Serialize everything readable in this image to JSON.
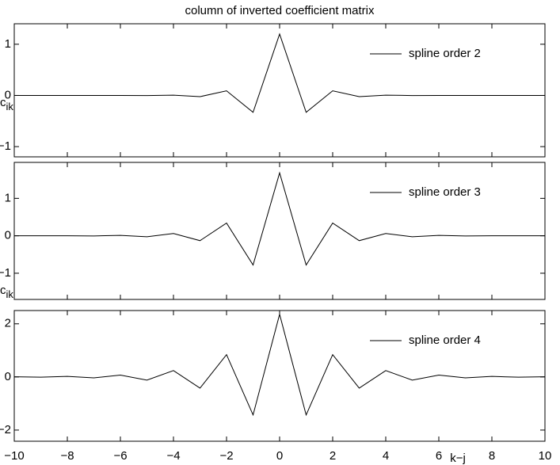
{
  "chart_data": [
    {
      "type": "line",
      "title": "column of inverted coefficient matrix",
      "ylabel": "c",
      "ylabel_subscript": "ik",
      "x": [
        -10,
        -9,
        -8,
        -7,
        -6,
        -5,
        -4,
        -3,
        -2,
        -1,
        0,
        1,
        2,
        3,
        4,
        5,
        6,
        7,
        8,
        9,
        10
      ],
      "series": [
        {
          "name": "spline order 2",
          "color": "#000000",
          "values": [
            0,
            0,
            0,
            0,
            0,
            -0.002,
            0.006,
            -0.024,
            0.09,
            -0.33,
            1.2,
            -0.33,
            0.09,
            -0.024,
            0.006,
            -0.002,
            0,
            0,
            0,
            0,
            0
          ]
        }
      ],
      "xlim": [
        -10,
        10
      ],
      "xticks": [
        -10,
        -8,
        -6,
        -4,
        -2,
        0,
        2,
        4,
        6,
        8,
        10
      ],
      "ylim": [
        -1.2,
        1.4
      ],
      "yticks": [
        {
          "value": -1,
          "label": "−1"
        },
        0,
        1
      ],
      "legend": "upper right"
    },
    {
      "type": "line",
      "ylabel": "c",
      "ylabel_subscript": "ik",
      "x": [
        -10,
        -9,
        -8,
        -7,
        -6,
        -5,
        -4,
        -3,
        -2,
        -1,
        0,
        1,
        2,
        3,
        4,
        5,
        6,
        7,
        8,
        9,
        10
      ],
      "series": [
        {
          "name": "spline order 3",
          "color": "#000000",
          "values": [
            0,
            0,
            0,
            -0.004,
            0.01,
            -0.025,
            0.06,
            -0.13,
            0.34,
            -0.78,
            1.68,
            -0.78,
            0.34,
            -0.13,
            0.06,
            -0.025,
            0.01,
            -0.004,
            0,
            0,
            0
          ]
        }
      ],
      "xlim": [
        -10,
        10
      ],
      "xticks": [
        -10,
        -8,
        -6,
        -4,
        -2,
        0,
        2,
        4,
        6,
        8,
        10
      ],
      "ylim": [
        -1.7,
        1.96
      ],
      "yticks": [
        {
          "value": -1,
          "label": "−1"
        },
        0,
        1
      ],
      "legend": "upper right"
    },
    {
      "type": "line",
      "xlabel": "k−j",
      "x": [
        -10,
        -9,
        -8,
        -7,
        -6,
        -5,
        -4,
        -3,
        -2,
        -1,
        0,
        1,
        2,
        3,
        4,
        5,
        6,
        7,
        8,
        9,
        10
      ],
      "series": [
        {
          "name": "spline order 4",
          "color": "#000000",
          "values": [
            0.005,
            -0.01,
            0.02,
            -0.035,
            0.07,
            -0.12,
            0.24,
            -0.42,
            0.84,
            -1.43,
            2.36,
            -1.43,
            0.84,
            -0.42,
            0.24,
            -0.12,
            0.07,
            -0.035,
            0.02,
            -0.01,
            0.005
          ]
        }
      ],
      "xlim": [
        -10,
        10
      ],
      "xticks": [
        {
          "value": -10,
          "label": "−10"
        },
        {
          "value": -8,
          "label": "−8"
        },
        {
          "value": -6,
          "label": "−6"
        },
        {
          "value": -4,
          "label": "−4"
        },
        {
          "value": -2,
          "label": "−2"
        },
        0,
        2,
        4,
        6,
        8,
        10
      ],
      "ylim": [
        -2.42,
        2.5
      ],
      "yticks": [
        {
          "value": -2,
          "label": "−2"
        },
        0,
        2
      ],
      "legend": "upper right"
    }
  ]
}
